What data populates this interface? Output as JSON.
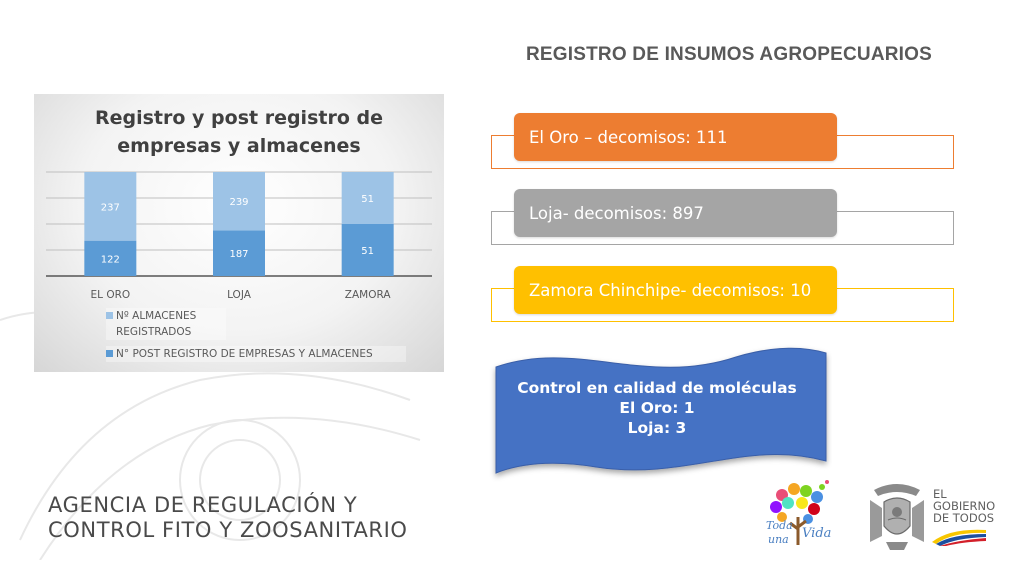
{
  "slide": {
    "title": "REGISTRO DE INSUMOS AGROPECUARIOS"
  },
  "chart": {
    "title_line1": "Registro y post registro  de",
    "title_line2": "empresas y almacenes",
    "legend": {
      "light_line1": "Nº ALMACENES",
      "light_line2": "REGISTRADOS",
      "dark": "N° POST REGISTRO DE EMPRESAS Y ALMACENES"
    }
  },
  "chart_data": {
    "type": "bar",
    "stacked": true,
    "title": "Registro y post registro  de empresas y almacenes",
    "categories": [
      "EL ORO",
      "LOJA",
      "ZAMORA"
    ],
    "series": [
      {
        "name": "N° POST REGISTRO DE EMPRESAS Y ALMACENES",
        "values": [
          122,
          187,
          51
        ],
        "color": "#5b9bd5"
      },
      {
        "name": "Nº ALMACENES REGISTRADOS",
        "values": [
          237,
          239,
          51
        ],
        "color": "#9dc3e6"
      }
    ],
    "percent_stacked": true,
    "grid": true,
    "legend_position": "bottom-left",
    "xlabel": "",
    "ylabel": ""
  },
  "info_bars": [
    {
      "label": "El Oro – decomisos: 111",
      "color": "#ed7d31"
    },
    {
      "label": "Loja- decomisos: 897",
      "color": "#a5a5a5"
    },
    {
      "label": "Zamora Chinchipe- decomisos: 10",
      "color": "#ffc000"
    }
  ],
  "banner": {
    "line1": "Control en calidad de moléculas",
    "line2": "El Oro: 1",
    "line3": "Loja: 3",
    "color": "#4472c4"
  },
  "footer": {
    "agency_line1": "AGENCIA DE REGULACIÓN Y",
    "agency_line2": "CONTROL FITO Y ZOOSANITARIO",
    "toda_logo_text": "Toda una Vida",
    "gov_line1": "EL",
    "gov_line2": "GOBIERNO",
    "gov_line3": "DE TODOS"
  }
}
